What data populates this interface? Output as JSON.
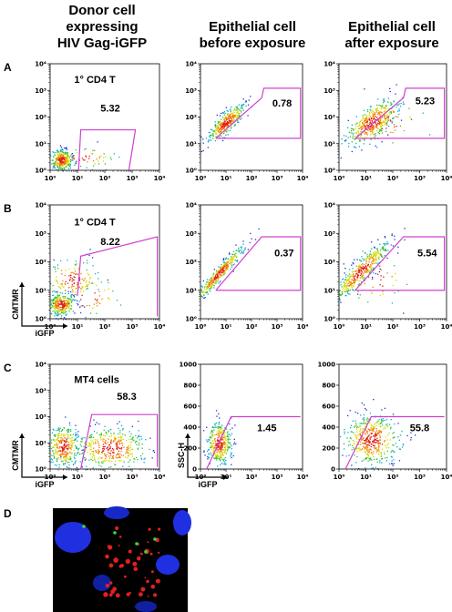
{
  "columns": [
    {
      "lines": [
        "Donor cell",
        "expressing",
        "HIV Gag-iGFP"
      ]
    },
    {
      "lines": [
        "Epithelial cell",
        "before exposure"
      ]
    },
    {
      "lines": [
        "Epithelial cell",
        "after exposure"
      ]
    }
  ],
  "log_ticks": [
    "10⁰",
    "10¹",
    "10²",
    "10³",
    "10⁴"
  ],
  "linear_ticks": [
    "0",
    "200",
    "400",
    "600",
    "800",
    "1000"
  ],
  "rows": [
    {
      "label": "A",
      "panels": [
        {
          "name": "1° CD4 T",
          "gate": 5.32
        },
        {
          "gate": 0.78
        },
        {
          "gate": 5.23
        }
      ]
    },
    {
      "label": "B",
      "panels": [
        {
          "name": "1° CD4 T",
          "gate": 8.22
        },
        {
          "gate": 0.37
        },
        {
          "gate": 5.54
        }
      ]
    },
    {
      "label": "C",
      "panels": [
        {
          "name": "MT4 cells",
          "gate": 58.3
        },
        {
          "gate": 1.45,
          "y_axis": "linear"
        },
        {
          "gate": 55.8,
          "y_axis": "linear"
        }
      ]
    }
  ],
  "axis_labels": {
    "cmtmr": "CMTMR",
    "igfp": "iGFP",
    "ssc": "SSC-H"
  },
  "panel_d": {
    "label": "D"
  }
}
